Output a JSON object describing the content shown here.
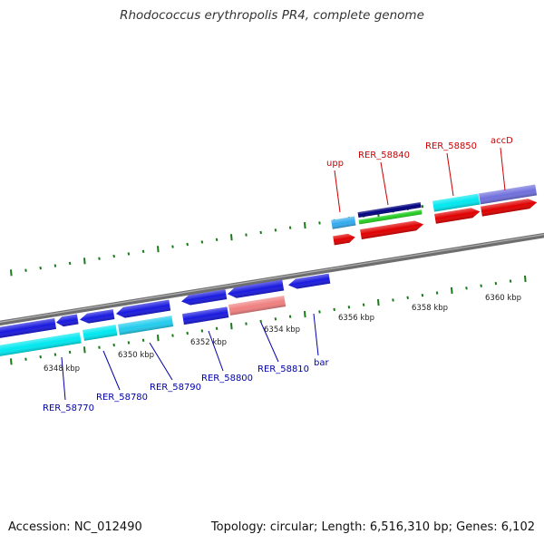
{
  "title": "Rhodococcus erythropolis PR4, complete genome",
  "footer": {
    "accession": "Accession: NC_012490",
    "topology": "Topology: circular; Length: 6,516,310 bp; Genes: 6,102"
  },
  "ticks": [
    "6348 kbp",
    "6350 kbp",
    "6352 kbp",
    "6354 kbp",
    "6356 kbp",
    "6358 kbp",
    "6360 kbp"
  ],
  "top_labels": [
    "upp",
    "RER_58840",
    "RER_58850",
    "accD"
  ],
  "bottom_labels": [
    "RER_58770",
    "RER_58780",
    "RER_58790",
    "RER_58800",
    "RER_58810",
    "bar"
  ],
  "colors": {
    "backbone": "#808080",
    "cds_blue": "#1a1adf",
    "cds_red": "#e00000",
    "cyan": "#00e8f0",
    "pink": "#f08080",
    "green": "#22cc22",
    "navy": "#000080",
    "purple": "#7070dd",
    "tick": "#1a7a1a",
    "label_top": "#cc0000",
    "label_bottom": "#0000aa"
  }
}
